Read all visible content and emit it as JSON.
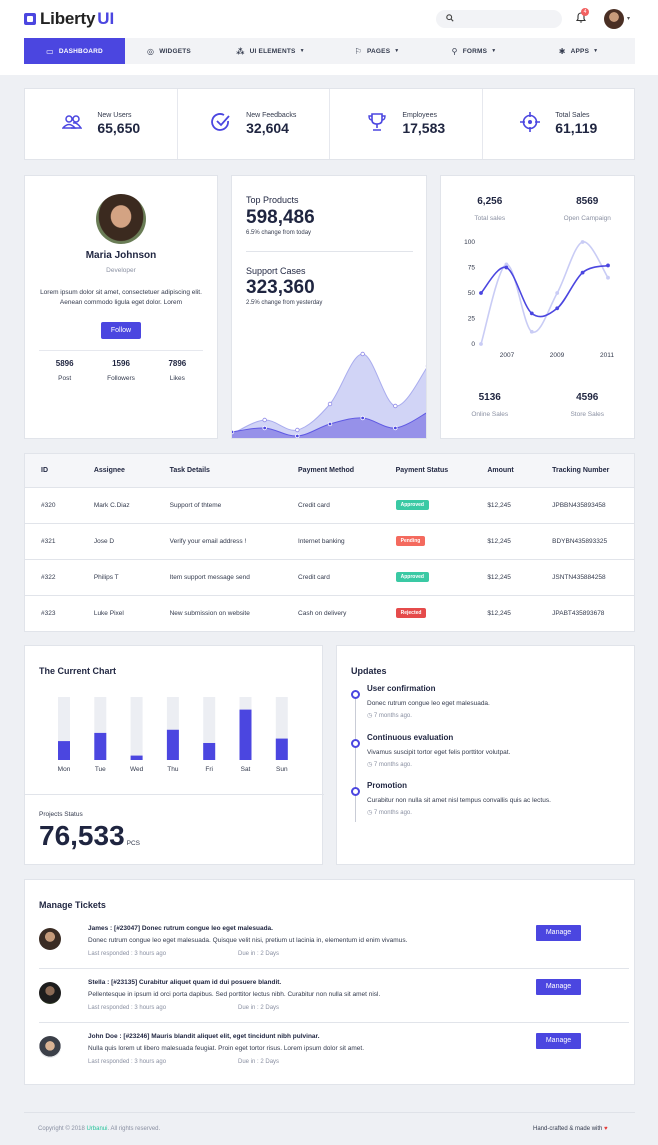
{
  "header": {
    "logo_text": "Liberty",
    "logo_accent": "UI",
    "notification_count": "4",
    "search_placeholder": ""
  },
  "nav": [
    {
      "label": "Dashboard",
      "icon": "monitor-icon",
      "active": true,
      "caret": false
    },
    {
      "label": "Widgets",
      "icon": "gauge-icon",
      "active": false,
      "caret": false
    },
    {
      "label": "UI Elements",
      "icon": "component-icon",
      "active": false,
      "caret": true
    },
    {
      "label": "Pages",
      "icon": "flag-icon",
      "active": false,
      "caret": true
    },
    {
      "label": "Forms",
      "icon": "user-form-icon",
      "active": false,
      "caret": true
    },
    {
      "label": "Apps",
      "icon": "asterisk-icon",
      "active": false,
      "caret": true
    }
  ],
  "stats": [
    {
      "label": "New Users",
      "value": "65,650",
      "icon": "users-icon"
    },
    {
      "label": "New Feedbacks",
      "value": "32,604",
      "icon": "check-circle-icon"
    },
    {
      "label": "Employees",
      "value": "17,583",
      "icon": "trophy-icon"
    },
    {
      "label": "Total Sales",
      "value": "61,119",
      "icon": "crosshair-icon"
    }
  ],
  "profile": {
    "name": "Maria Johnson",
    "role": "Developer",
    "bio": "Lorem ipsum dolor sit amet, consectetuer adipiscing elit. Aenean commodo ligula eget dolor. Lorem",
    "follow_label": "Follow",
    "stats": [
      {
        "value": "5896",
        "label": "Post"
      },
      {
        "value": "1596",
        "label": "Followers"
      },
      {
        "value": "7896",
        "label": "Likes"
      }
    ]
  },
  "products": {
    "top_title": "Top Products",
    "top_value": "598,486",
    "top_change": "6.5% change from today",
    "support_title": "Support Cases",
    "support_value": "323,360",
    "support_change": "2.5% change from yesterday"
  },
  "colors": {
    "accent": "#4b46e0",
    "accent_light": "#c9ccf5",
    "approved": "#3ac9a4",
    "pending": "#f46a5e",
    "rejected": "#e54b4b"
  },
  "line_summary": {
    "top": [
      {
        "value": "6,256",
        "label": "Total sales"
      },
      {
        "value": "8569",
        "label": "Open Campaign"
      }
    ],
    "bottom": [
      {
        "value": "5136",
        "label": "Online Sales"
      },
      {
        "value": "4596",
        "label": "Store Sales"
      }
    ]
  },
  "orders": {
    "columns": [
      "ID",
      "Assignee",
      "Task Details",
      "Payment Method",
      "Payment Status",
      "Amount",
      "Tracking Number"
    ],
    "rows": [
      {
        "id": "#320",
        "assignee": "Mark C.Diaz",
        "task": "Support of thteme",
        "method": "Credit card",
        "status": "Approved",
        "status_color": "#3ac9a4",
        "amount": "$12,245",
        "tracking": "JPBBN435893458"
      },
      {
        "id": "#321",
        "assignee": "Jose D",
        "task": "Verify your email address !",
        "method": "Internet banking",
        "status": "Pending",
        "status_color": "#f46a5e",
        "amount": "$12,245",
        "tracking": "BDYBN435893325"
      },
      {
        "id": "#322",
        "assignee": "Philips T",
        "task": "Item support message send",
        "method": "Credit card",
        "status": "Approved",
        "status_color": "#3ac9a4",
        "amount": "$12,245",
        "tracking": "JSNTN435884258"
      },
      {
        "id": "#323",
        "assignee": "Luke Pixel",
        "task": "New submission on website",
        "method": "Cash on delivery",
        "status": "Rejected",
        "status_color": "#e54b4b",
        "amount": "$12,245",
        "tracking": "JPABT435893678"
      }
    ]
  },
  "current_chart": {
    "title": "The Current Chart",
    "projects_status_label": "Projects Status",
    "projects_value": "76,533",
    "projects_unit": "PCS"
  },
  "updates": {
    "title": "Updates",
    "items": [
      {
        "title": "User confirmation",
        "text": "Donec rutrum congue leo eget malesuada.",
        "time": "7 months ago."
      },
      {
        "title": "Continuous evaluation",
        "text": "Vivamus suscipit tortor eget felis porttitor volutpat.",
        "time": "7 months ago."
      },
      {
        "title": "Promotion",
        "text": "Curabitur non nulla sit amet nisl tempus convallis quis ac lectus.",
        "time": "7 months ago."
      }
    ]
  },
  "tickets": {
    "title": "Manage Tickets",
    "manage_label": "Manage",
    "last_label": "Last responded :",
    "due_label": "Due in :",
    "items": [
      {
        "name": "James :",
        "subject": "[#23047] Donec rutrum congue leo eget malesuada.",
        "text": "Donec rutrum congue leo eget malesuada. Quisque velit nisi, pretium ut lacinia in, elementum id enim vivamus.",
        "last": "3 hours ago",
        "due": "2 Days"
      },
      {
        "name": "Stella :",
        "subject": "[#23135] Curabitur aliquet quam id dui posuere blandit.",
        "text": "Pellentesque in ipsum id orci porta dapibus. Sed porttitor lectus nibh. Curabitur non nulla sit amet nisl.",
        "last": "3 hours ago",
        "due": "2 Days"
      },
      {
        "name": "John Doe :",
        "subject": "[#23246] Mauris blandit aliquet elit, eget tincidunt nibh pulvinar.",
        "text": "Nulla quis lorem ut libero malesuada feugiat. Proin eget tortor risus. Lorem ipsum dolor sit amet.",
        "last": "3 hours ago",
        "due": "2 Days"
      }
    ]
  },
  "footer": {
    "copyright": "Copyright © 2018",
    "brand": "Urbanui",
    "rights": ". All rights reserved.",
    "made_with": "Hand-crafted & made with"
  },
  "chart_data": [
    {
      "type": "area",
      "series": [
        {
          "values": [
            3,
            10,
            5,
            18,
            43,
            17,
            37
          ]
        },
        {
          "values": [
            4,
            6,
            2,
            8,
            11,
            6,
            14
          ]
        }
      ]
    },
    {
      "type": "line",
      "x_ticks": [
        "2007",
        "2009",
        "2011"
      ],
      "y_ticks": [
        "0",
        "25",
        "50",
        "75",
        "100"
      ],
      "ylim": [
        0,
        100
      ],
      "series": [
        {
          "color": "#4b46e0",
          "values": [
            50,
            75,
            30,
            35,
            70,
            77
          ]
        },
        {
          "color": "#c9ccf5",
          "values": [
            0,
            78,
            12,
            50,
            100,
            65
          ]
        }
      ]
    },
    {
      "type": "bar",
      "categories": [
        "Mon",
        "Tue",
        "Wed",
        "Thu",
        "Fri",
        "Sat",
        "Sun"
      ],
      "values": [
        30,
        43,
        7,
        48,
        27,
        80,
        34
      ],
      "ylim": [
        0,
        100
      ]
    }
  ]
}
